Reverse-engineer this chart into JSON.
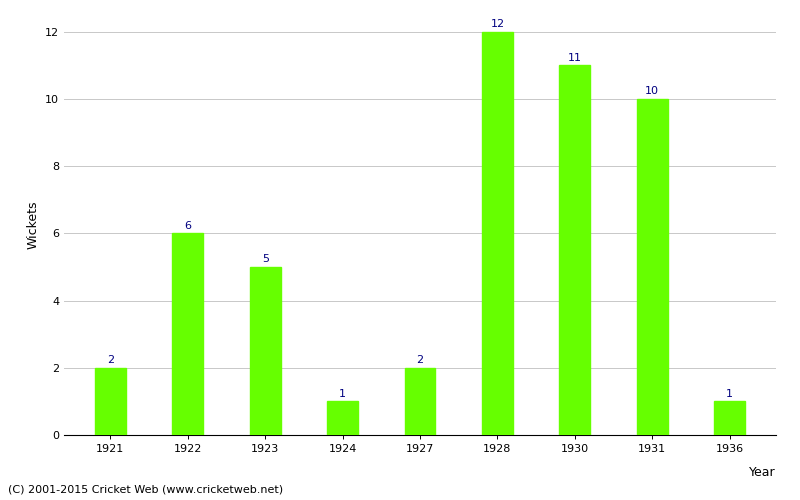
{
  "years": [
    "1921",
    "1922",
    "1923",
    "1924",
    "1927",
    "1928",
    "1930",
    "1931",
    "1936"
  ],
  "wickets": [
    2,
    6,
    5,
    1,
    2,
    12,
    11,
    10,
    1
  ],
  "bar_color": "#66ff00",
  "bar_edge_color": "#66ff00",
  "label_color": "#000080",
  "ylabel": "Wickets",
  "xlabel": "Year",
  "ylim": [
    0,
    12.5
  ],
  "yticks": [
    0,
    2,
    4,
    6,
    8,
    10,
    12
  ],
  "footer": "(C) 2001-2015 Cricket Web (www.cricketweb.net)",
  "label_fontsize": 8,
  "axis_label_fontsize": 9,
  "tick_fontsize": 8,
  "footer_fontsize": 8,
  "background_color": "#ffffff",
  "grid_color": "#c8c8c8"
}
